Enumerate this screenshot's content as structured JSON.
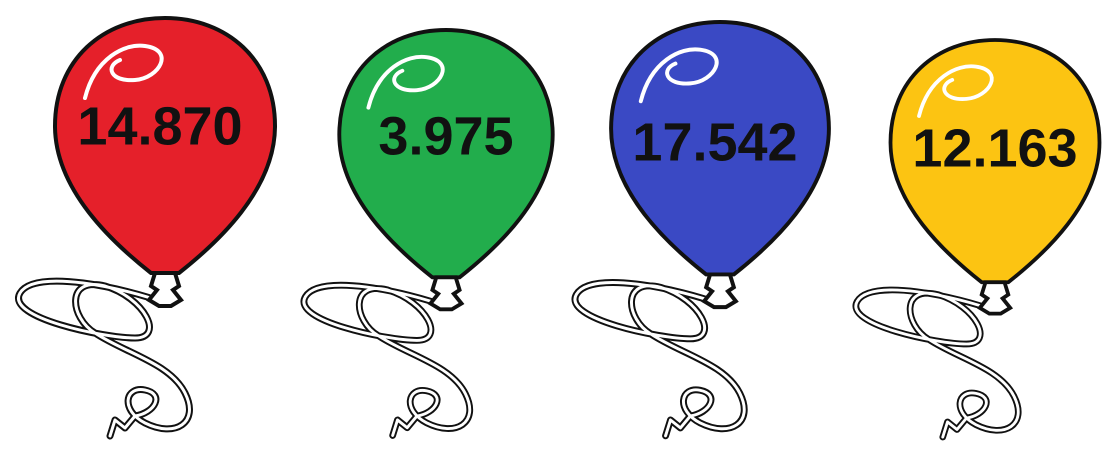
{
  "balloons": [
    {
      "label": "14.870"
    },
    {
      "label": "3.975"
    },
    {
      "label": "17.542"
    },
    {
      "label": "12.163"
    }
  ]
}
